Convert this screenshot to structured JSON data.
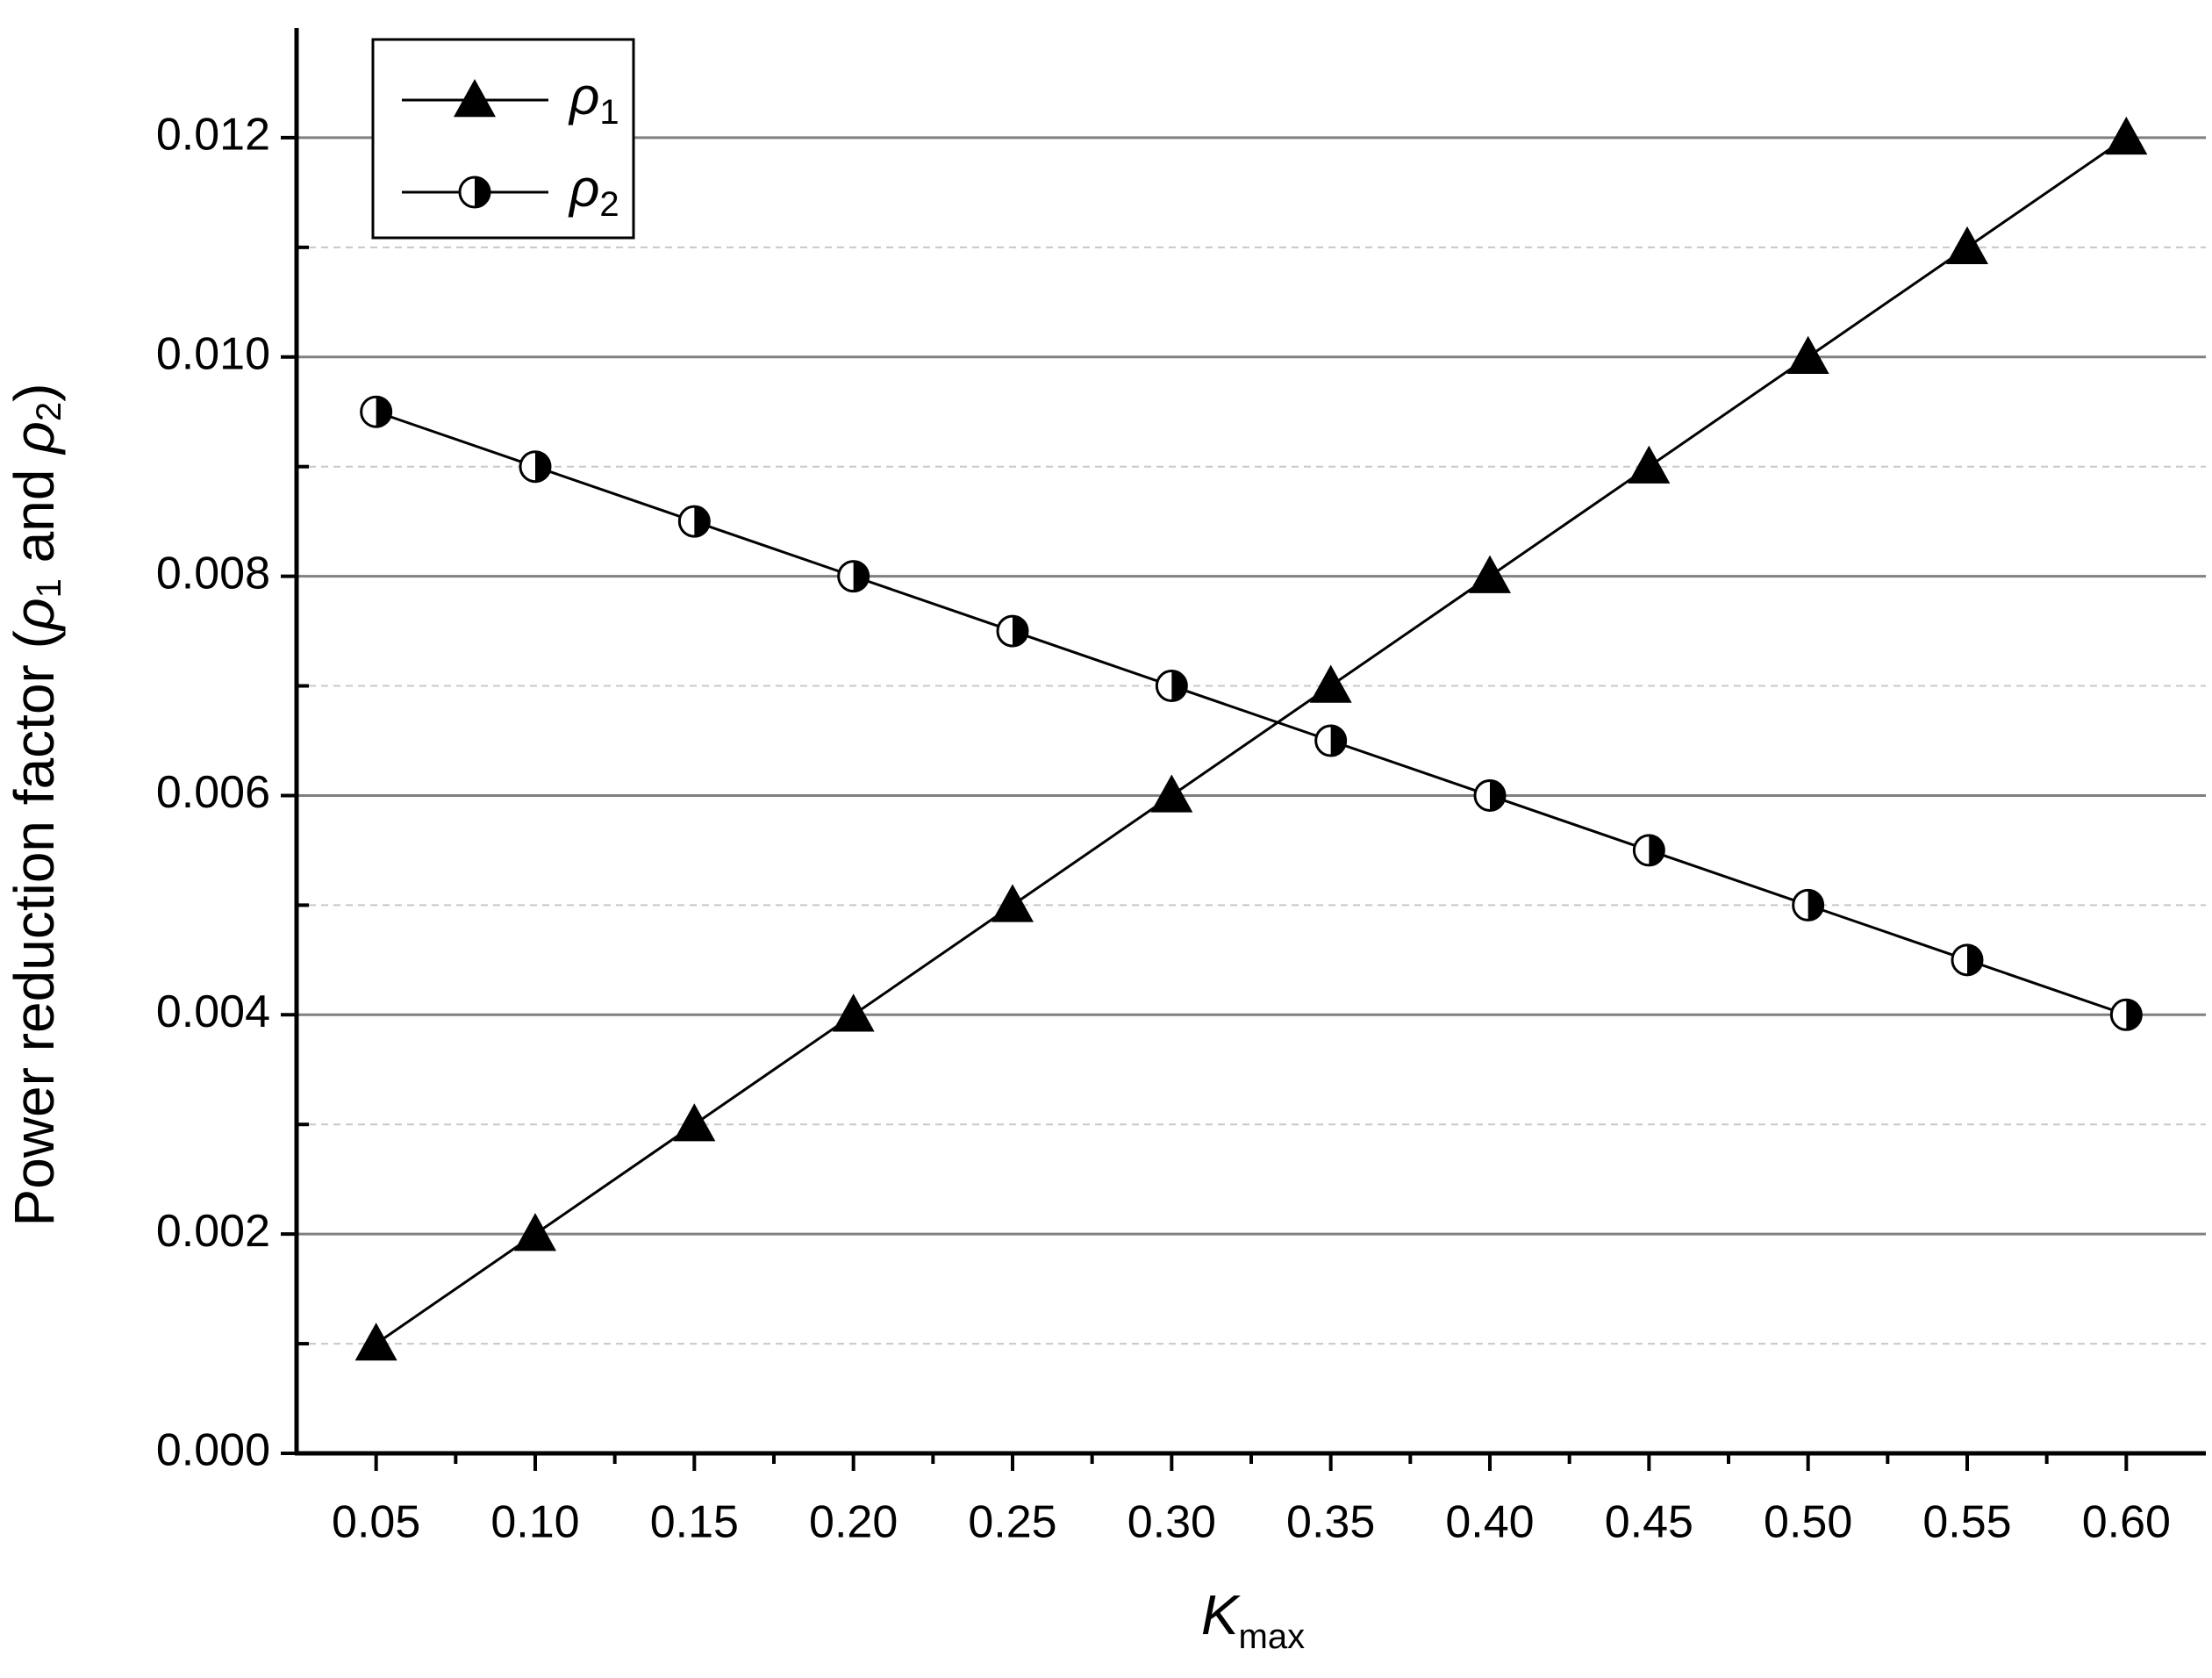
{
  "chart_data": {
    "type": "line",
    "xlabel": [
      "K",
      "max"
    ],
    "ylabel": [
      "Power reduction factor (",
      "ρ",
      "1",
      " and ",
      "ρ",
      "2",
      ")"
    ],
    "x": [
      0.05,
      0.1,
      0.15,
      0.2,
      0.25,
      0.3,
      0.35,
      0.4,
      0.45,
      0.5,
      0.55,
      0.6
    ],
    "series": [
      {
        "name": "ρ",
        "name_sub": "1",
        "color": "#000000",
        "marker": "triangle",
        "values": [
          0.001,
          0.002,
          0.003,
          0.004,
          0.005,
          0.006,
          0.007,
          0.008,
          0.009,
          0.01,
          0.011,
          0.012
        ]
      },
      {
        "name": "ρ",
        "name_sub": "2",
        "color": "#000000",
        "marker": "half-circle",
        "values": [
          0.0095,
          0.009,
          0.0085,
          0.008,
          0.0075,
          0.007,
          0.0065,
          0.006,
          0.0055,
          0.005,
          0.0045,
          0.004
        ]
      }
    ],
    "xlim": [
      0.025,
      0.625
    ],
    "ylim": [
      0,
      0.013
    ],
    "xticks": [
      {
        "value": 0.05,
        "label": "0.05"
      },
      {
        "value": 0.1,
        "label": "0.10"
      },
      {
        "value": 0.15,
        "label": "0.15"
      },
      {
        "value": 0.2,
        "label": "0.20"
      },
      {
        "value": 0.25,
        "label": "0.25"
      },
      {
        "value": 0.3,
        "label": "0.30"
      },
      {
        "value": 0.35,
        "label": "0.35"
      },
      {
        "value": 0.4,
        "label": "0.40"
      },
      {
        "value": 0.45,
        "label": "0.45"
      },
      {
        "value": 0.5,
        "label": "0.50"
      },
      {
        "value": 0.55,
        "label": "0.55"
      },
      {
        "value": 0.6,
        "label": "0.60"
      }
    ],
    "xminorticks": [
      0.075,
      0.125,
      0.175,
      0.225,
      0.275,
      0.325,
      0.375,
      0.425,
      0.475,
      0.525,
      0.575
    ],
    "yticks": [
      {
        "value": 0,
        "label": "0.000"
      },
      {
        "value": 0.002,
        "label": "0.002"
      },
      {
        "value": 0.004,
        "label": "0.004"
      },
      {
        "value": 0.006,
        "label": "0.006"
      },
      {
        "value": 0.008,
        "label": "0.008"
      },
      {
        "value": 0.01,
        "label": "0.010"
      },
      {
        "value": 0.012,
        "label": "0.012"
      }
    ],
    "yminorticks": [
      0.001,
      0.003,
      0.005,
      0.007,
      0.009,
      0.011
    ],
    "grid": true,
    "legend": "upper-left"
  }
}
